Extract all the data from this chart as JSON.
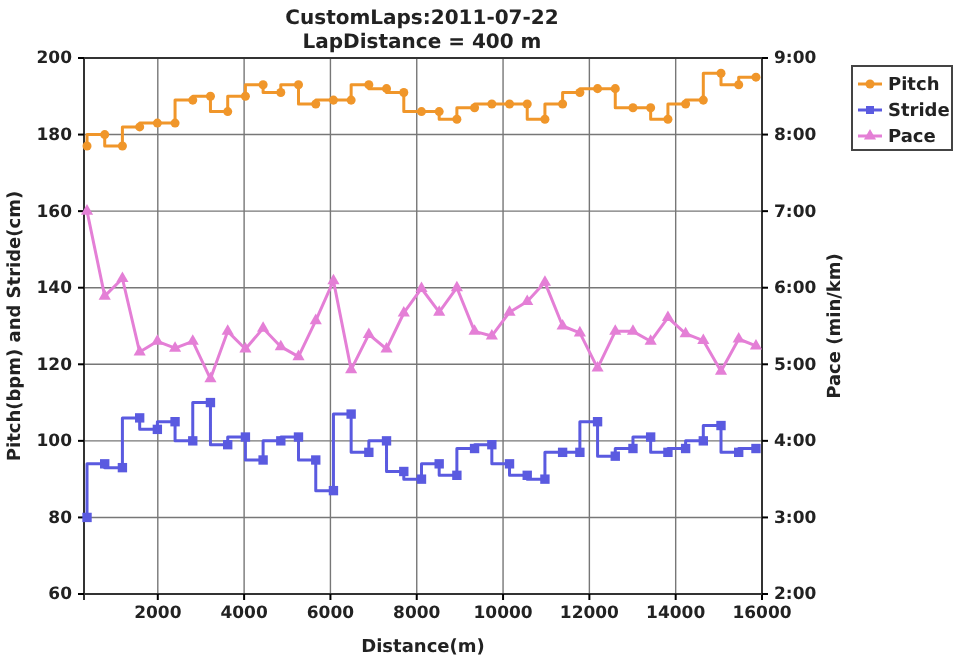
{
  "chart_data": {
    "type": "line",
    "title": "CustomLaps:2011-07-22",
    "subtitle": "LapDistance = 400 m",
    "xlabel": "Distance(m)",
    "ylabel": "Pitch(bpm) and Stride(cm)",
    "y2label": "Pace (min/km)",
    "x": [
      360,
      770,
      1180,
      1580,
      1990,
      2400,
      2810,
      3220,
      3620,
      4030,
      4440,
      4850,
      5260,
      5660,
      6070,
      6480,
      6890,
      7300,
      7700,
      8110,
      8520,
      8930,
      9340,
      9740,
      10150,
      10560,
      10970,
      11380,
      11780,
      12190,
      12600,
      13010,
      13420,
      13820,
      14230,
      14640,
      15050,
      15460,
      15860
    ],
    "series": [
      {
        "name": "Pitch",
        "type": "step",
        "marker": "circle",
        "color": "#f0962a",
        "values": [
          177,
          180,
          177,
          182,
          183,
          183,
          189,
          190,
          186,
          190,
          193,
          191,
          193,
          188,
          189,
          189,
          193,
          192,
          191,
          186,
          186,
          184,
          187,
          188,
          188,
          188,
          184,
          188,
          191,
          192,
          192,
          187,
          187,
          184,
          188,
          189,
          196,
          193,
          195
        ]
      },
      {
        "name": "Stride",
        "type": "step",
        "marker": "square",
        "color": "#5a5ae0",
        "values": [
          80,
          94,
          93,
          106,
          103,
          105,
          100,
          110,
          99,
          101,
          95,
          100,
          101,
          95,
          87,
          107,
          97,
          100,
          92,
          90,
          94,
          91,
          98,
          99,
          94,
          91,
          90,
          97,
          97,
          105,
          96,
          98,
          101,
          97,
          98,
          100,
          104,
          97,
          98
        ]
      },
      {
        "name": "Pace",
        "type": "line",
        "marker": "triangle",
        "axis": "y2",
        "color": "#e47fd6",
        "values": [
          7.0,
          5.89,
          6.12,
          5.16,
          5.3,
          5.21,
          5.3,
          4.81,
          5.43,
          5.2,
          5.47,
          5.23,
          5.1,
          5.57,
          6.09,
          4.93,
          5.39,
          5.2,
          5.67,
          5.99,
          5.68,
          6.0,
          5.43,
          5.37,
          5.68,
          5.82,
          6.07,
          5.5,
          5.41,
          4.95,
          5.43,
          5.43,
          5.3,
          5.61,
          5.4,
          5.31,
          4.91,
          5.33,
          5.24
        ]
      }
    ],
    "xlim": [
      290,
      16000
    ],
    "xticks": [
      2000,
      4000,
      6000,
      8000,
      10000,
      12000,
      14000,
      16000
    ],
    "ylim": [
      60,
      200
    ],
    "yticks": [
      60,
      80,
      100,
      120,
      140,
      160,
      180,
      200
    ],
    "y2lim": [
      2,
      9
    ],
    "y2ticks": [
      {
        "value": 2,
        "label": "2:00"
      },
      {
        "value": 3,
        "label": "3:00"
      },
      {
        "value": 4,
        "label": "4:00"
      },
      {
        "value": 5,
        "label": "5:00"
      },
      {
        "value": 6,
        "label": "6:00"
      },
      {
        "value": 7,
        "label": "7:00"
      },
      {
        "value": 8,
        "label": "8:00"
      },
      {
        "value": 9,
        "label": "9:00"
      }
    ],
    "grid": true,
    "legend": "top right",
    "line_style": "solid"
  }
}
